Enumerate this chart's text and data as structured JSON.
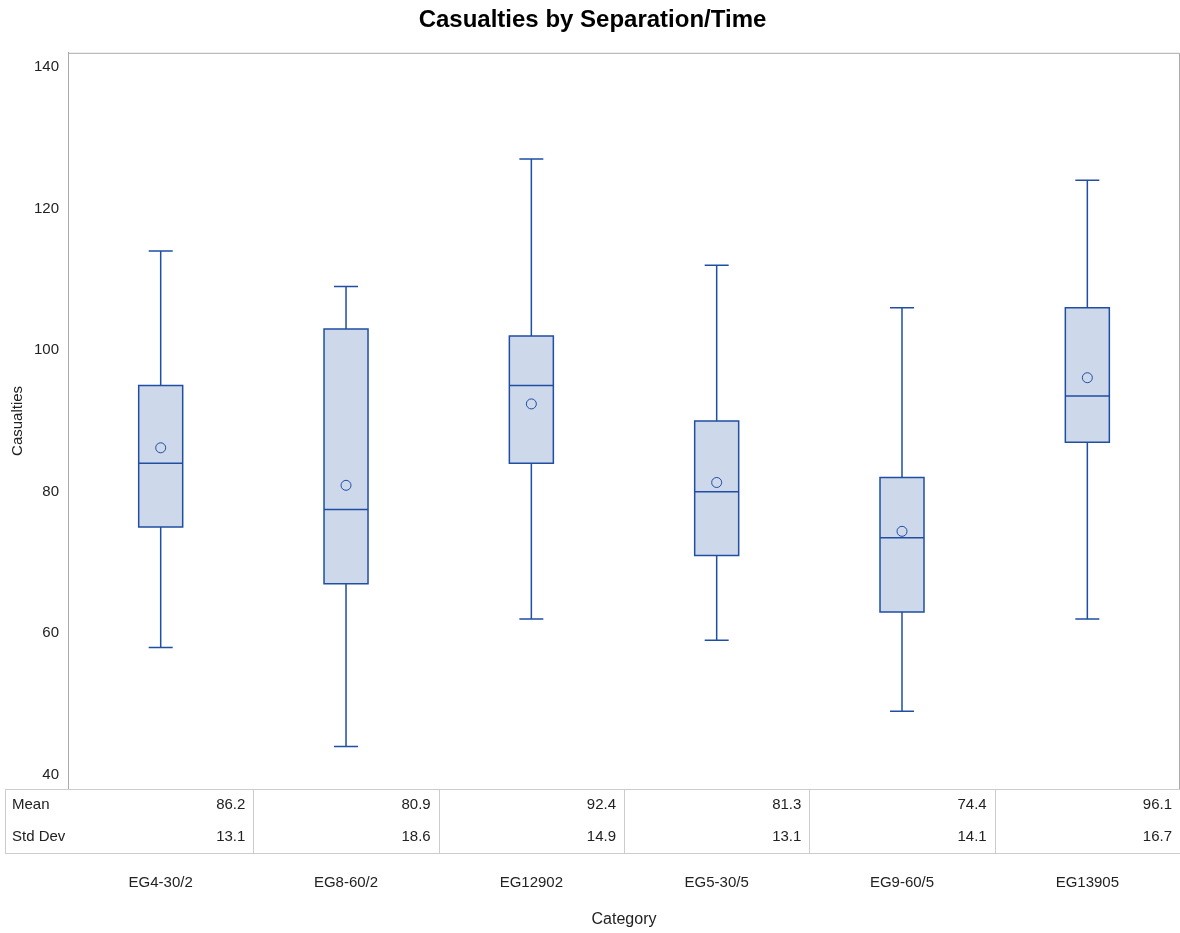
{
  "chart_data": {
    "type": "box",
    "title": "Casualties by Separation/Time",
    "xlabel": "Category",
    "ylabel": "Casualties",
    "categories": [
      "EG4-30/2",
      "EG8-60/2",
      "EG12902",
      "EG5-30/5",
      "EG9-60/5",
      "EG13905"
    ],
    "color": "#1f4ea3",
    "boxes": [
      {
        "low": 58,
        "q1": 75,
        "median": 84,
        "q3": 95,
        "high": 114,
        "mean": 86.2
      },
      {
        "low": 44,
        "q1": 67,
        "median": 77.5,
        "q3": 103,
        "high": 109,
        "mean": 80.9
      },
      {
        "low": 62,
        "q1": 84,
        "median": 95,
        "q3": 102,
        "high": 127,
        "mean": 92.4
      },
      {
        "low": 59,
        "q1": 71,
        "median": 80,
        "q3": 90,
        "high": 112,
        "mean": 81.3
      },
      {
        "low": 49,
        "q1": 63,
        "median": 73.5,
        "q3": 82,
        "high": 106,
        "mean": 74.4
      },
      {
        "low": 62,
        "q1": 87,
        "median": 93.5,
        "q3": 106,
        "high": 124,
        "mean": 96.1
      }
    ],
    "ylim": [
      38,
      142
    ],
    "yticks": [
      40,
      60,
      80,
      100,
      120,
      140
    ],
    "grid": false,
    "legend": false,
    "annotations": [
      "Mean",
      "86.2",
      "80.9",
      "92.4",
      "81.3",
      "74.4",
      "96.1",
      "Std Dev",
      "13.1",
      "18.6",
      "14.9",
      "13.1",
      "14.1",
      "16.7"
    ]
  }
}
